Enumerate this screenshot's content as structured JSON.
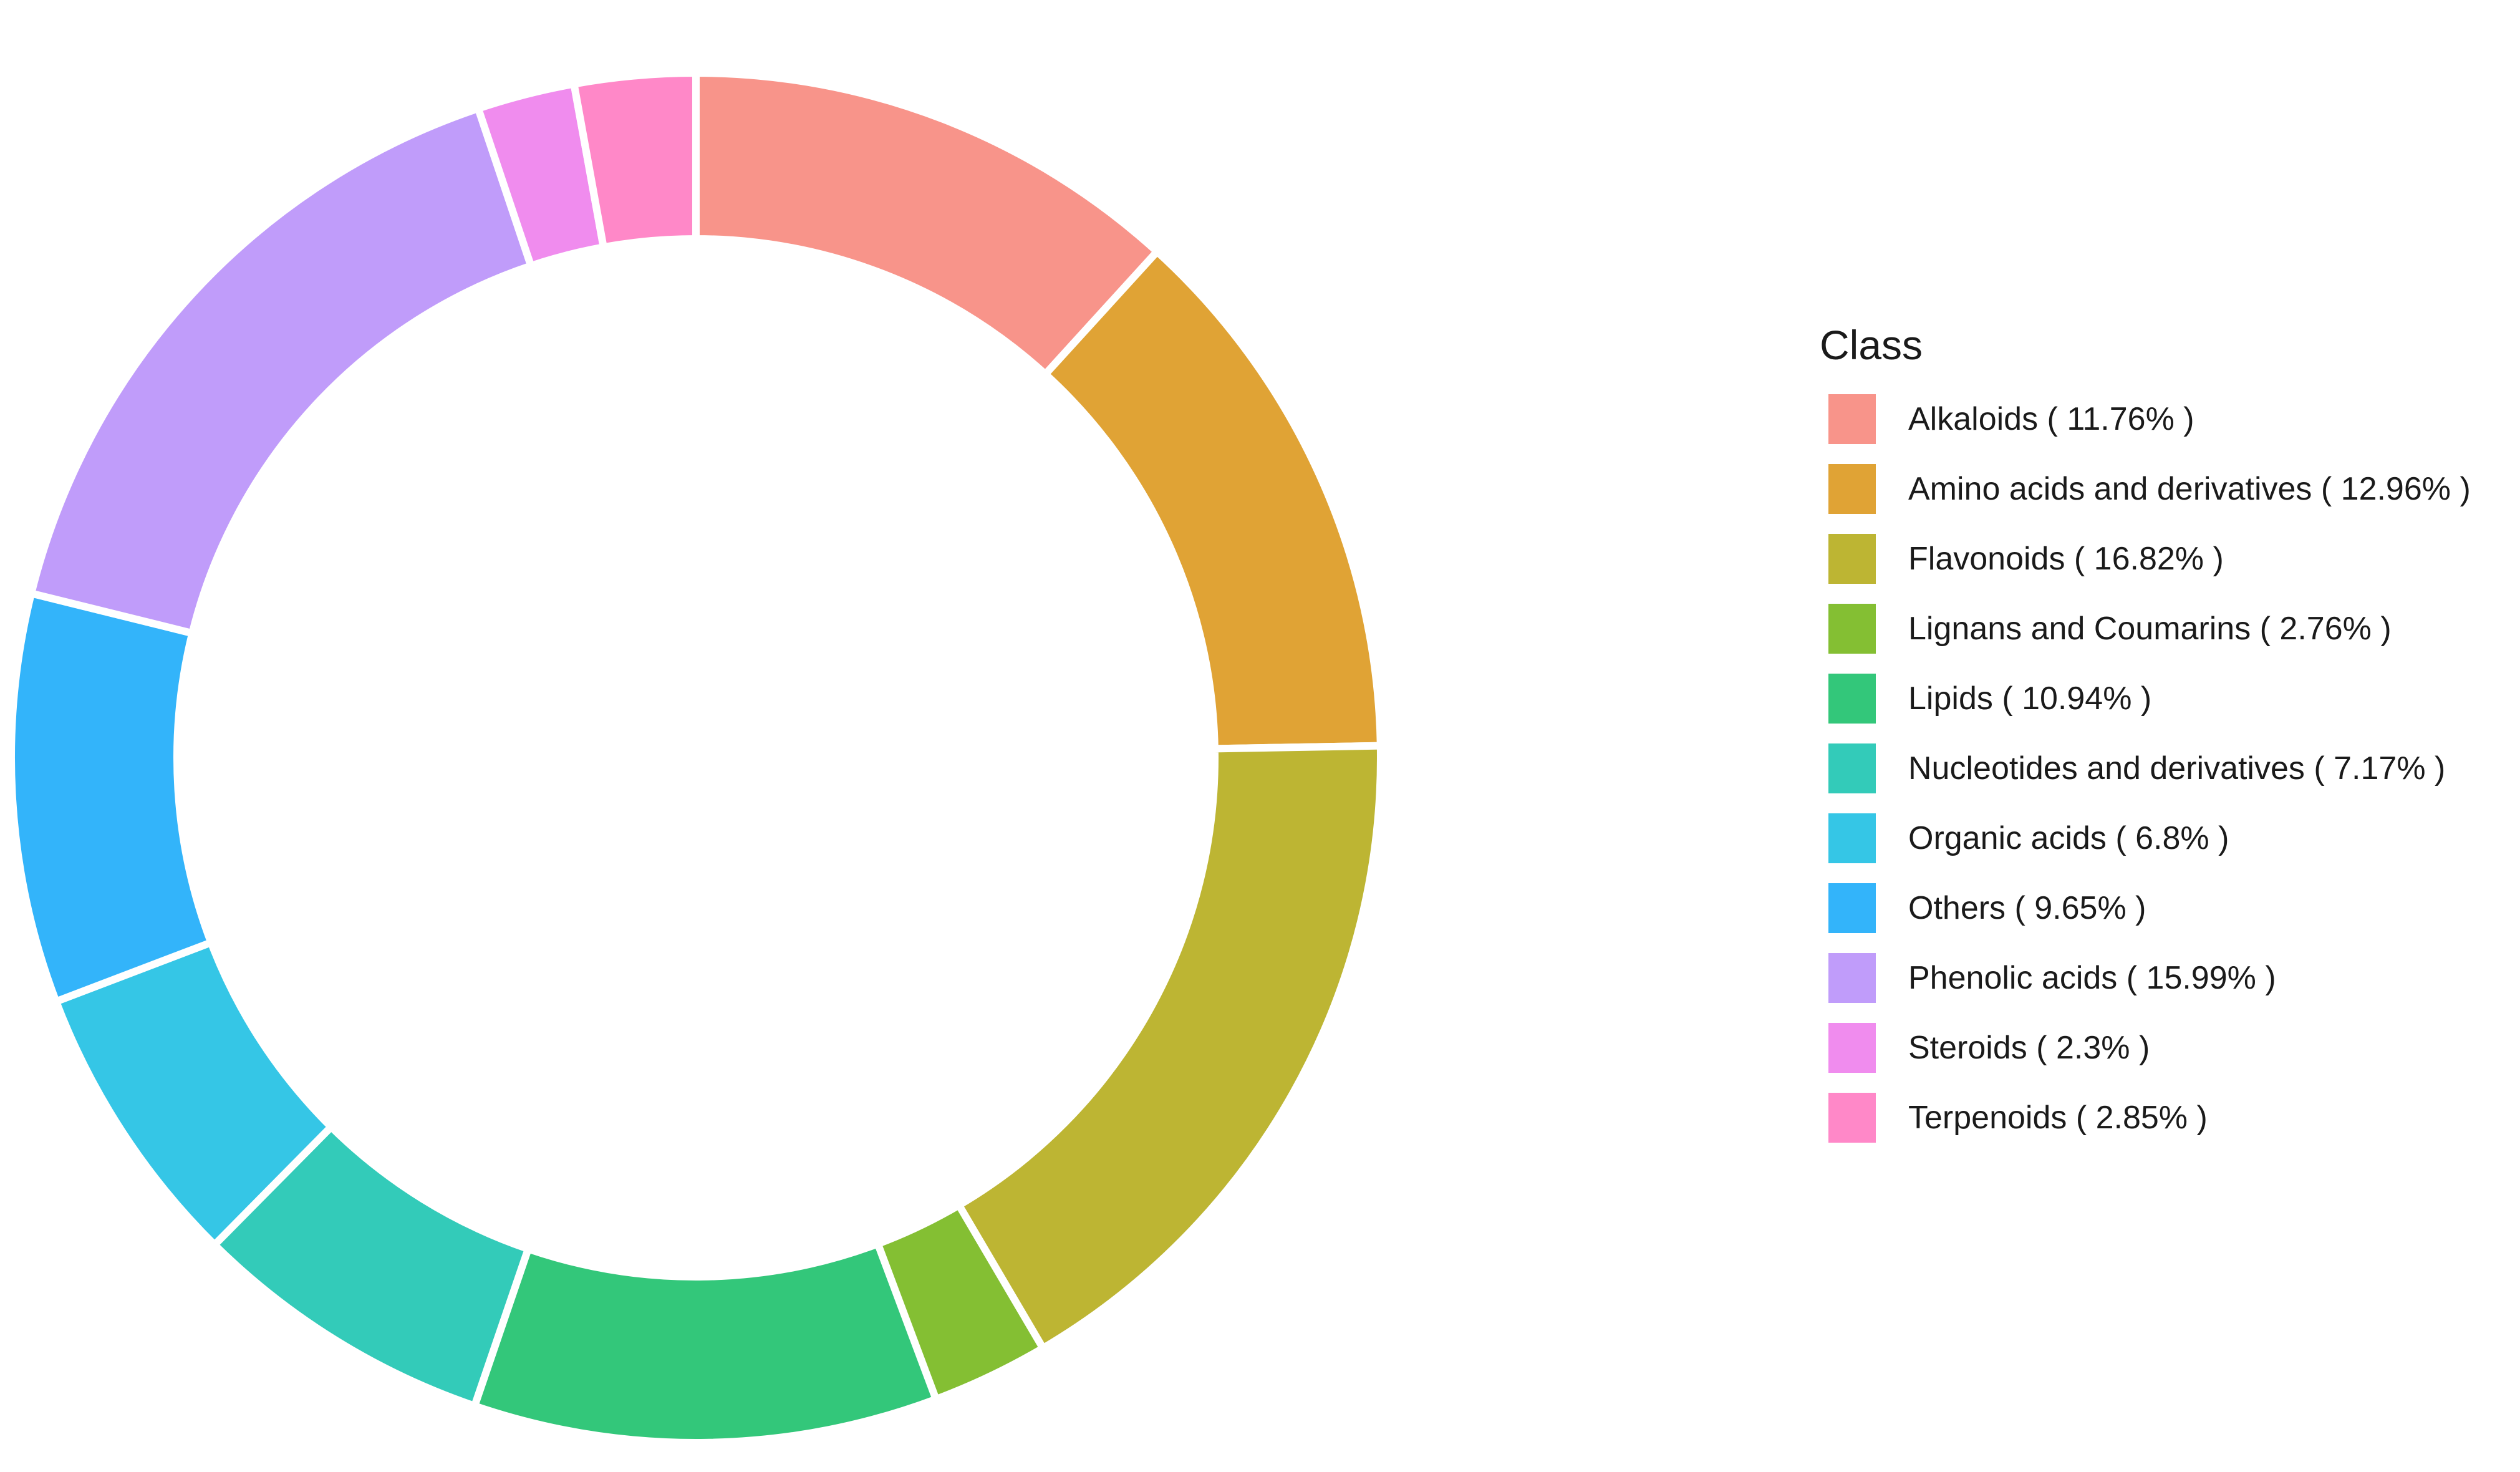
{
  "chart_data": {
    "type": "pie",
    "variant": "donut",
    "legend_title": "Class",
    "legend_position": "right",
    "slices": [
      {
        "label": "Alkaloids ( 11.76% )",
        "value": 11.76,
        "color": "#F8948A"
      },
      {
        "label": "Amino acids and derivatives ( 12.96% )",
        "value": 12.96,
        "color": "#E0A335"
      },
      {
        "label": "Flavonoids ( 16.82% )",
        "value": 16.82,
        "color": "#BDB533"
      },
      {
        "label": "Lignans and Coumarins ( 2.76% )",
        "value": 2.76,
        "color": "#84BF33"
      },
      {
        "label": "Lipids ( 10.94% )",
        "value": 10.94,
        "color": "#33C77A"
      },
      {
        "label": "Nucleotides and derivatives ( 7.17% )",
        "value": 7.17,
        "color": "#33CBB9"
      },
      {
        "label": "Organic acids ( 6.8% )",
        "value": 6.8,
        "color": "#35C6E6"
      },
      {
        "label": "Others ( 9.65% )",
        "value": 9.65,
        "color": "#33B4FA"
      },
      {
        "label": "Phenolic acids ( 15.99% )",
        "value": 15.99,
        "color": "#C09CFA"
      },
      {
        "label": "Steroids ( 2.3% )",
        "value": 2.3,
        "color": "#F08CEE"
      },
      {
        "label": "Terpenoids ( 2.85% )",
        "value": 2.85,
        "color": "#FF88C8"
      }
    ]
  }
}
